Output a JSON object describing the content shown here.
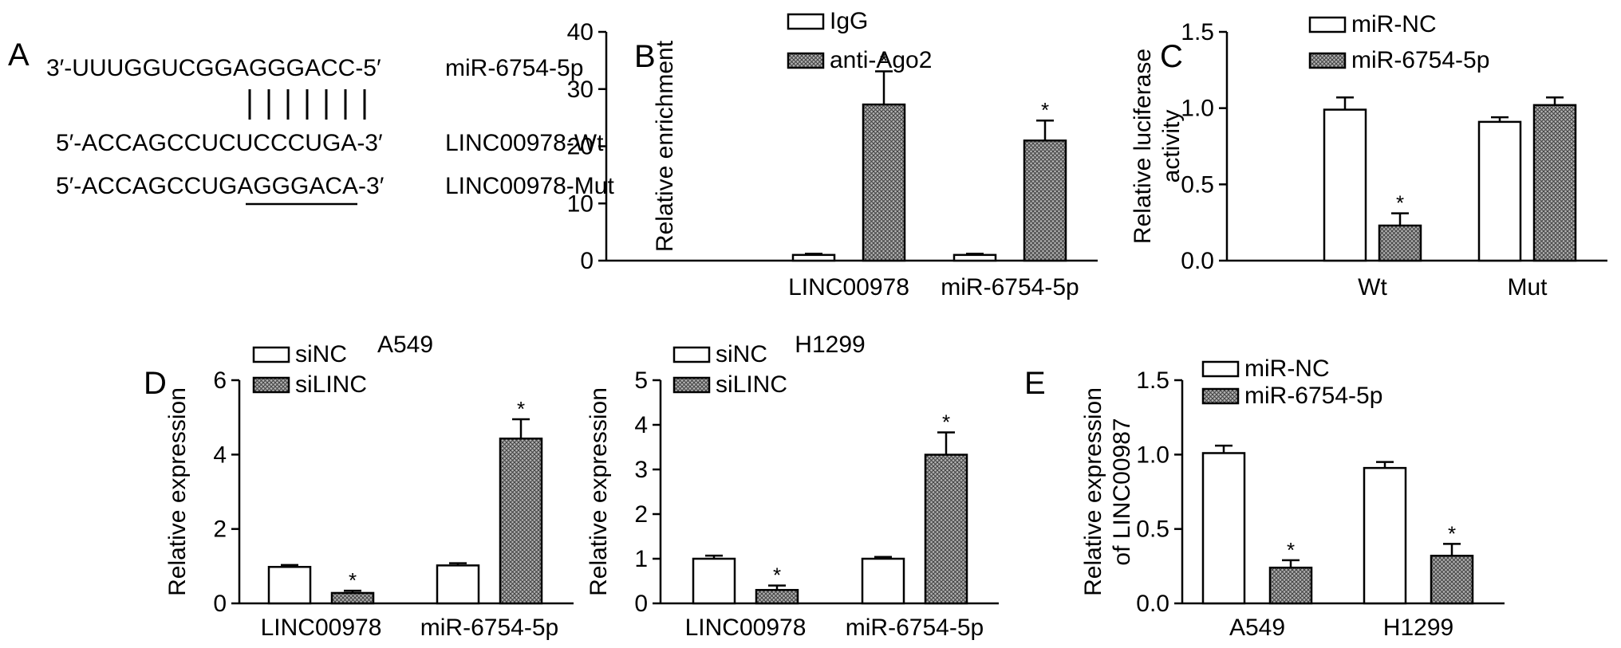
{
  "panel_a": {
    "letter": "A",
    "rows": [
      {
        "seq": "3′-UUUGGUCGGAGGGACC-5′",
        "label": "miR-6754-5p"
      },
      {
        "seq": "5′-ACCAGCCUCUCCCUGA-3′",
        "label": "LINC00978-Wt"
      },
      {
        "seq_prefix": "5′-ACCAGCCU",
        "seq_mid": "GAGGGA",
        "seq_suffix": "CA-3′",
        "label": "LINC00978-Mut"
      }
    ],
    "pairing_lines": 7
  },
  "colors": {
    "control": "#ffffff",
    "treated_pattern": "crosshatch-gray",
    "stroke": "#000000"
  },
  "chart_data": [
    {
      "id": "B",
      "letter": "B",
      "type": "bar",
      "title": "",
      "xlabel": "",
      "ylabel": "Relative enrichment",
      "ylim": [
        0,
        40
      ],
      "yticks": [
        "0",
        "10",
        "20",
        "30",
        "40"
      ],
      "categories": [
        "LINC00978",
        "miR-6754-5p"
      ],
      "series": [
        {
          "name": "IgG",
          "values": [
            1.0,
            1.0
          ],
          "errors": [
            0.2,
            0.2
          ],
          "sig": [
            false,
            false
          ]
        },
        {
          "name": "anti-Ago2",
          "values": [
            27.3,
            21.0
          ],
          "errors": [
            5.8,
            3.5
          ],
          "sig": [
            true,
            true
          ]
        }
      ],
      "sig_mark": "*",
      "legend": "top-left"
    },
    {
      "id": "C",
      "letter": "C",
      "type": "bar",
      "title": "",
      "xlabel": "",
      "ylabel": "Relative luciferase activity",
      "ylabel_lines": [
        "Relative luciferase",
        "activity"
      ],
      "ylim": [
        0,
        1.5
      ],
      "yticks": [
        "0.0",
        "0.5",
        "1.0",
        "1.5"
      ],
      "categories": [
        "Wt",
        "Mut"
      ],
      "series": [
        {
          "name": "miR-NC",
          "values": [
            0.99,
            0.91
          ],
          "errors": [
            0.08,
            0.03
          ],
          "sig": [
            false,
            false
          ]
        },
        {
          "name": "miR-6754-5p",
          "values": [
            0.23,
            1.02
          ],
          "errors": [
            0.08,
            0.05
          ],
          "sig": [
            true,
            false
          ]
        }
      ],
      "sig_mark": "*",
      "legend": "top-left"
    },
    {
      "id": "D1",
      "letter": "D",
      "type": "bar",
      "title": "A549",
      "xlabel": "",
      "ylabel": "Relative expression",
      "ylim": [
        0,
        6
      ],
      "yticks": [
        "0",
        "2",
        "4",
        "6"
      ],
      "categories": [
        "LINC00978",
        "miR-6754-5p"
      ],
      "series": [
        {
          "name": "siNC",
          "values": [
            0.98,
            1.02
          ],
          "errors": [
            0.05,
            0.06
          ],
          "sig": [
            false,
            false
          ]
        },
        {
          "name": "siLINC",
          "values": [
            0.28,
            4.43
          ],
          "errors": [
            0.06,
            0.52
          ],
          "sig": [
            true,
            true
          ]
        }
      ],
      "sig_mark": "*",
      "legend": "top-left"
    },
    {
      "id": "D2",
      "letter": "",
      "type": "bar",
      "title": "H1299",
      "xlabel": "",
      "ylabel": "Relative expression",
      "ylim": [
        0,
        5
      ],
      "yticks": [
        "0",
        "1",
        "2",
        "3",
        "4",
        "5"
      ],
      "categories": [
        "LINC00978",
        "miR-6754-5p"
      ],
      "series": [
        {
          "name": "siNC",
          "values": [
            1.0,
            1.0
          ],
          "errors": [
            0.07,
            0.04
          ],
          "sig": [
            false,
            false
          ]
        },
        {
          "name": "siLINC",
          "values": [
            0.3,
            3.33
          ],
          "errors": [
            0.1,
            0.5
          ],
          "sig": [
            true,
            true
          ]
        }
      ],
      "sig_mark": "*",
      "legend": "top-left"
    },
    {
      "id": "E",
      "letter": "E",
      "type": "bar",
      "title": "",
      "xlabel": "",
      "ylabel": "Relative expression of LINC00987",
      "ylabel_lines": [
        "Relative expression",
        "of LINC00987"
      ],
      "ylim": [
        0,
        1.5
      ],
      "yticks": [
        "0.0",
        "0.5",
        "1.0",
        "1.5"
      ],
      "categories": [
        "A549",
        "H1299"
      ],
      "series": [
        {
          "name": "miR-NC",
          "values": [
            1.01,
            0.91
          ],
          "errors": [
            0.05,
            0.04
          ],
          "sig": [
            false,
            false
          ]
        },
        {
          "name": "miR-6754-5p",
          "values": [
            0.24,
            0.32
          ],
          "errors": [
            0.05,
            0.08
          ],
          "sig": [
            true,
            true
          ]
        }
      ],
      "sig_mark": "*",
      "legend": "top-left"
    }
  ]
}
